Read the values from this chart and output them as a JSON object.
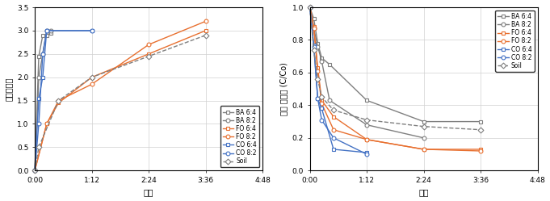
{
  "left": {
    "xlabel": "시간",
    "ylabel": "상대물깊이",
    "xlim": [
      0,
      288
    ],
    "ylim": [
      0,
      3.5
    ],
    "yticks": [
      0.0,
      0.5,
      1.0,
      1.5,
      2.0,
      2.5,
      3.0,
      3.5
    ],
    "xticks_min": [
      0,
      72,
      144,
      216,
      288
    ],
    "xtick_labels": [
      "0:00",
      "1:12",
      "2:24",
      "3:36",
      "4:48"
    ],
    "series": {
      "BA 6:4": {
        "x": [
          0,
          5,
          10,
          15,
          20
        ],
        "y": [
          0.0,
          2.45,
          2.9,
          2.9,
          2.95
        ],
        "color": "#7F7F7F",
        "marker": "s",
        "linestyle": "-",
        "mfc": "white"
      },
      "BA 8:2": {
        "x": [
          0,
          5,
          10,
          15,
          20
        ],
        "y": [
          0.0,
          2.0,
          2.5,
          3.0,
          3.0
        ],
        "color": "#7F7F7F",
        "marker": "o",
        "linestyle": "-",
        "mfc": "white"
      },
      "FO 6:4": {
        "x": [
          0,
          15,
          30,
          72,
          144,
          216
        ],
        "y": [
          0.0,
          1.0,
          1.45,
          2.0,
          2.5,
          3.0
        ],
        "color": "#E87030",
        "marker": "s",
        "linestyle": "-",
        "mfc": "white"
      },
      "FO 8:2": {
        "x": [
          0,
          15,
          30,
          72,
          144,
          216
        ],
        "y": [
          0.0,
          1.0,
          1.5,
          1.85,
          2.7,
          3.2
        ],
        "color": "#E87030",
        "marker": "o",
        "linestyle": "-",
        "mfc": "white"
      },
      "CO 6:4": {
        "x": [
          0,
          5,
          10,
          15,
          72
        ],
        "y": [
          0.0,
          1.55,
          2.0,
          3.0,
          3.0
        ],
        "color": "#4472C4",
        "marker": "s",
        "linestyle": "-",
        "mfc": "white"
      },
      "CO 8:2": {
        "x": [
          0,
          5,
          10,
          15,
          72
        ],
        "y": [
          0.0,
          1.0,
          2.5,
          3.0,
          3.0
        ],
        "color": "#4472C4",
        "marker": "o",
        "linestyle": "-",
        "mfc": "white"
      },
      "Soil": {
        "x": [
          0,
          5,
          30,
          72,
          144,
          216
        ],
        "y": [
          0.0,
          0.5,
          1.5,
          2.0,
          2.45,
          2.9
        ],
        "color": "#7F7F7F",
        "marker": "D",
        "linestyle": "--",
        "mfc": "white"
      }
    }
  },
  "right": {
    "xlabel": "시간",
    "ylabel": "상대 염농도 (C/Co)",
    "xlim": [
      0,
      288
    ],
    "ylim": [
      0,
      1.0
    ],
    "yticks": [
      0.0,
      0.2,
      0.4,
      0.6,
      0.8,
      1.0
    ],
    "xticks_min": [
      0,
      72,
      144,
      216,
      288
    ],
    "xtick_labels": [
      "0:00",
      "1:12",
      "2:24",
      "3:36",
      "4:48"
    ],
    "series": {
      "BA 6:4": {
        "x": [
          0,
          5,
          10,
          15,
          25,
          72,
          144,
          216
        ],
        "y": [
          1.0,
          0.93,
          0.78,
          0.69,
          0.65,
          0.43,
          0.3,
          0.3
        ],
        "color": "#7F7F7F",
        "marker": "s",
        "linestyle": "-",
        "mfc": "white"
      },
      "BA 8:2": {
        "x": [
          0,
          5,
          10,
          15,
          25,
          72,
          144
        ],
        "y": [
          1.0,
          0.87,
          0.76,
          0.67,
          0.43,
          0.28,
          0.2
        ],
        "color": "#7F7F7F",
        "marker": "o",
        "linestyle": "-",
        "mfc": "white"
      },
      "FO 6:4": {
        "x": [
          0,
          5,
          10,
          15,
          30,
          72,
          144,
          216
        ],
        "y": [
          1.0,
          0.88,
          0.63,
          0.43,
          0.33,
          0.19,
          0.13,
          0.13
        ],
        "color": "#E87030",
        "marker": "s",
        "linestyle": "-",
        "mfc": "white"
      },
      "FO 8:2": {
        "x": [
          0,
          5,
          10,
          15,
          30,
          72,
          144,
          216
        ],
        "y": [
          1.0,
          0.87,
          0.61,
          0.41,
          0.25,
          0.19,
          0.13,
          0.12
        ],
        "color": "#E87030",
        "marker": "o",
        "linestyle": "-",
        "mfc": "white"
      },
      "CO 6:4": {
        "x": [
          0,
          5,
          10,
          15,
          30,
          72
        ],
        "y": [
          1.0,
          0.77,
          0.44,
          0.38,
          0.13,
          0.11
        ],
        "color": "#4472C4",
        "marker": "s",
        "linestyle": "-",
        "mfc": "white"
      },
      "CO 8:2": {
        "x": [
          0,
          5,
          10,
          15,
          30,
          72
        ],
        "y": [
          1.0,
          0.76,
          0.44,
          0.31,
          0.2,
          0.1
        ],
        "color": "#4472C4",
        "marker": "o",
        "linestyle": "-",
        "mfc": "white"
      },
      "Soil": {
        "x": [
          0,
          5,
          10,
          15,
          30,
          72,
          144,
          216
        ],
        "y": [
          1.0,
          0.74,
          0.56,
          0.45,
          0.37,
          0.31,
          0.27,
          0.25
        ],
        "color": "#7F7F7F",
        "marker": "D",
        "linestyle": "--",
        "mfc": "white"
      }
    }
  }
}
